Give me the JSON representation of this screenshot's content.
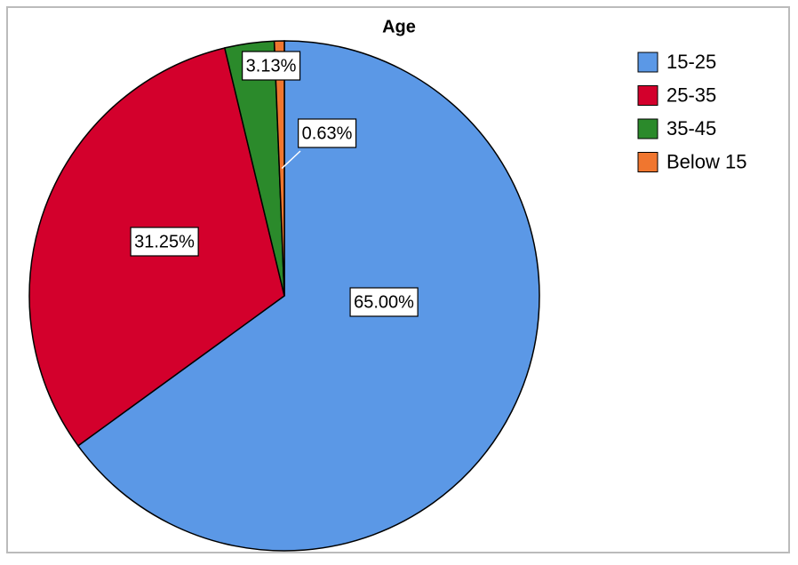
{
  "chart_data": {
    "type": "pie",
    "title": "Age",
    "categories": [
      "15-25",
      "25-35",
      "35-45",
      "Below 15"
    ],
    "values": [
      65.0,
      31.25,
      3.13,
      0.63
    ],
    "value_labels": [
      "65.00%",
      "31.25%",
      "3.13%",
      "0.63%"
    ],
    "colors": [
      "#5b98e6",
      "#d3002c",
      "#2b8a2b",
      "#f0762f"
    ]
  }
}
